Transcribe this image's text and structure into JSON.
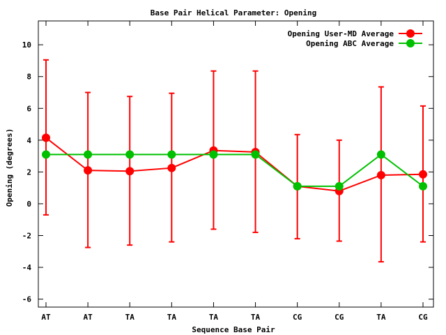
{
  "chart_data": {
    "type": "line",
    "title": "Base Pair Helical Parameter: Opening",
    "xlabel": "Sequence Base Pair",
    "ylabel": "Opening (degrees)",
    "categories": [
      "AT",
      "AT",
      "TA",
      "TA",
      "TA",
      "TA",
      "CG",
      "CG",
      "TA",
      "CG"
    ],
    "ylim": [
      -6.5,
      11.5
    ],
    "yticks": [
      -6,
      -4,
      -2,
      0,
      2,
      4,
      6,
      8,
      10
    ],
    "ytick_labels": [
      "-6",
      "-4",
      "-2",
      "0",
      "2",
      "4",
      "6",
      "8",
      "10"
    ],
    "grid": false,
    "legend_position": "top-right",
    "series": [
      {
        "name": "Opening User-MD Average",
        "color": "#ff0000",
        "values": [
          4.15,
          2.1,
          2.05,
          2.25,
          3.35,
          3.25,
          1.1,
          0.8,
          1.8,
          1.85
        ],
        "err_low": [
          -0.7,
          -2.75,
          -2.6,
          -2.4,
          -1.6,
          -1.8,
          -2.2,
          -2.35,
          -3.65,
          -2.4
        ],
        "err_high": [
          9.05,
          7.0,
          6.75,
          6.95,
          8.35,
          8.35,
          4.35,
          4.0,
          7.35,
          6.15
        ]
      },
      {
        "name": "Opening ABC Average",
        "color": "#00c000",
        "values": [
          3.1,
          3.1,
          3.1,
          3.1,
          3.1,
          3.1,
          1.1,
          1.1,
          3.1,
          1.1
        ]
      }
    ]
  }
}
